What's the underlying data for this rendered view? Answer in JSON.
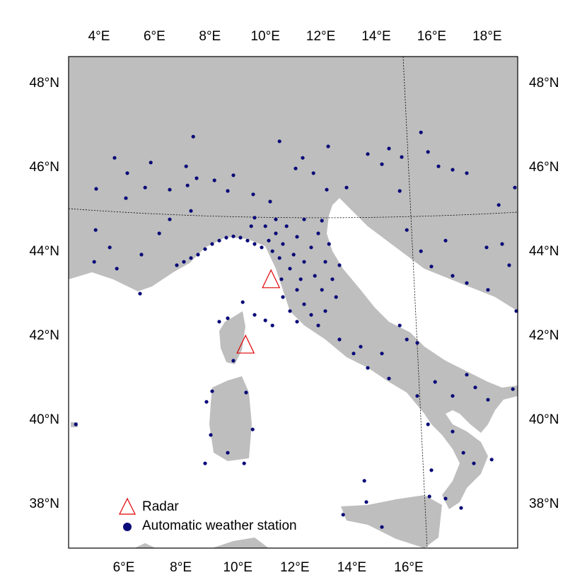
{
  "map": {
    "top_ticks": [
      "4°E",
      "6°E",
      "8°E",
      "10°E",
      "12°E",
      "14°E",
      "16°E",
      "18°E"
    ],
    "bottom_ticks": [
      "6°E",
      "8°E",
      "10°E",
      "12°E",
      "14°E",
      "16°E"
    ],
    "left_ticks": [
      "48°N",
      "46°N",
      "44°N",
      "42°N",
      "40°N",
      "38°N"
    ],
    "right_ticks": [
      "48°N",
      "46°N",
      "44°N",
      "42°N",
      "40°N",
      "38°N"
    ],
    "legend": {
      "radar": "Radar",
      "station": "Automatic weather station"
    },
    "radars": [
      [
        10.28,
        43.34
      ],
      [
        9.38,
        41.8
      ]
    ],
    "stations": [
      [
        4.1,
        45.47
      ],
      [
        4.75,
        46.2
      ],
      [
        5.2,
        45.84
      ],
      [
        5.15,
        45.25
      ],
      [
        5.83,
        45.5
      ],
      [
        6.03,
        46.09
      ],
      [
        6.7,
        45.45
      ],
      [
        7.28,
        46.0
      ],
      [
        7.33,
        45.55
      ],
      [
        7.53,
        46.7
      ],
      [
        7.65,
        45.72
      ],
      [
        8.28,
        45.67
      ],
      [
        8.75,
        45.42
      ],
      [
        8.95,
        45.79
      ],
      [
        9.65,
        45.34
      ],
      [
        10.25,
        45.17
      ],
      [
        10.58,
        46.59
      ],
      [
        11.15,
        45.95
      ],
      [
        11.4,
        46.2
      ],
      [
        11.78,
        45.84
      ],
      [
        12.3,
        46.47
      ],
      [
        12.25,
        45.45
      ],
      [
        12.95,
        45.5
      ],
      [
        13.7,
        46.29
      ],
      [
        14.2,
        46.05
      ],
      [
        14.45,
        46.42
      ],
      [
        14.83,
        45.42
      ],
      [
        14.9,
        46.22
      ],
      [
        15.58,
        46.8
      ],
      [
        15.83,
        46.34
      ],
      [
        16.2,
        46.0
      ],
      [
        16.7,
        45.92
      ],
      [
        17.2,
        45.84
      ],
      [
        18.33,
        45.09
      ],
      [
        18.9,
        45.5
      ],
      [
        4.08,
        44.5
      ],
      [
        4.58,
        44.09
      ],
      [
        4.03,
        43.75
      ],
      [
        4.83,
        43.59
      ],
      [
        5.7,
        43.92
      ],
      [
        5.65,
        43.0
      ],
      [
        6.33,
        44.42
      ],
      [
        6.7,
        44.75
      ],
      [
        7.45,
        44.95
      ],
      [
        6.95,
        43.67
      ],
      [
        7.2,
        43.75
      ],
      [
        7.45,
        43.84
      ],
      [
        7.7,
        43.92
      ],
      [
        7.95,
        44.05
      ],
      [
        8.2,
        44.17
      ],
      [
        8.45,
        44.25
      ],
      [
        8.7,
        44.32
      ],
      [
        8.95,
        44.35
      ],
      [
        9.2,
        44.32
      ],
      [
        9.45,
        44.25
      ],
      [
        9.7,
        44.17
      ],
      [
        9.58,
        44.59
      ],
      [
        9.95,
        44.09
      ],
      [
        10.08,
        44.59
      ],
      [
        10.2,
        44.25
      ],
      [
        10.33,
        44.0
      ],
      [
        10.45,
        44.42
      ],
      [
        10.58,
        43.84
      ],
      [
        10.7,
        44.17
      ],
      [
        10.83,
        44.59
      ],
      [
        10.95,
        43.59
      ],
      [
        11.08,
        43.92
      ],
      [
        11.2,
        44.34
      ],
      [
        11.33,
        43.34
      ],
      [
        11.45,
        43.75
      ],
      [
        11.7,
        44.09
      ],
      [
        11.83,
        43.42
      ],
      [
        11.95,
        44.42
      ],
      [
        12.08,
        43.09
      ],
      [
        12.2,
        43.75
      ],
      [
        12.33,
        44.17
      ],
      [
        12.45,
        43.34
      ],
      [
        12.58,
        42.92
      ],
      [
        10.7,
        42.92
      ],
      [
        10.95,
        42.59
      ],
      [
        11.2,
        42.34
      ],
      [
        11.45,
        42.75
      ],
      [
        11.7,
        42.5
      ],
      [
        11.95,
        42.25
      ],
      [
        12.2,
        42.59
      ],
      [
        12.7,
        43.67
      ],
      [
        10.65,
        43.34
      ],
      [
        11.2,
        43.09
      ],
      [
        10.45,
        44.75
      ],
      [
        9.7,
        44.79
      ],
      [
        11.45,
        44.75
      ],
      [
        12.08,
        44.72
      ],
      [
        10.33,
        42.25
      ],
      [
        12.7,
        41.92
      ],
      [
        13.2,
        41.59
      ],
      [
        13.45,
        41.75
      ],
      [
        13.7,
        41.25
      ],
      [
        14.2,
        41.59
      ],
      [
        14.45,
        41.0
      ],
      [
        14.83,
        42.25
      ],
      [
        15.08,
        41.92
      ],
      [
        15.45,
        41.84
      ],
      [
        15.45,
        40.59
      ],
      [
        15.83,
        39.92
      ],
      [
        16.08,
        40.92
      ],
      [
        16.7,
        40.59
      ],
      [
        17.2,
        41.09
      ],
      [
        17.5,
        40.79
      ],
      [
        17.95,
        40.5
      ],
      [
        18.83,
        40.75
      ],
      [
        16.7,
        39.75
      ],
      [
        17.08,
        39.25
      ],
      [
        17.45,
        39.0
      ],
      [
        18.08,
        39.09
      ],
      [
        15.95,
        38.84
      ],
      [
        16.45,
        38.17
      ],
      [
        17.0,
        37.95
      ],
      [
        15.88,
        38.22
      ],
      [
        13.58,
        38.59
      ],
      [
        14.2,
        37.5
      ],
      [
        12.83,
        37.79
      ],
      [
        13.65,
        38.09
      ],
      [
        15.08,
        44.5
      ],
      [
        15.58,
        44.0
      ],
      [
        16.45,
        44.25
      ],
      [
        16.7,
        43.42
      ],
      [
        17.2,
        43.25
      ],
      [
        17.95,
        43.09
      ],
      [
        18.7,
        43.67
      ],
      [
        18.45,
        44.17
      ],
      [
        15.95,
        43.64
      ],
      [
        18.95,
        42.59
      ],
      [
        17.9,
        44.09
      ],
      [
        8.75,
        42.42
      ],
      [
        9.28,
        42.8
      ],
      [
        8.45,
        42.34
      ],
      [
        8.95,
        41.42
      ],
      [
        8.2,
        40.7
      ],
      [
        8.0,
        40.45
      ],
      [
        8.15,
        39.67
      ],
      [
        8.75,
        39.25
      ],
      [
        9.33,
        39.0
      ],
      [
        7.95,
        39.0
      ],
      [
        9.4,
        40.67
      ],
      [
        9.63,
        39.8
      ],
      [
        10.08,
        42.37
      ],
      [
        9.7,
        42.5
      ],
      [
        3.38,
        39.92
      ]
    ]
  }
}
